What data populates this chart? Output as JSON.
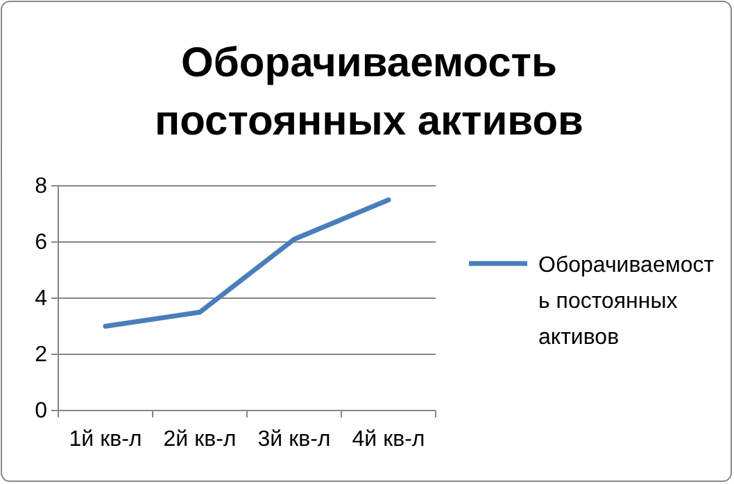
{
  "chart_data": {
    "type": "line",
    "title": "Оборачиваемость постоянных активов",
    "categories": [
      "1й кв-л",
      "2й кв-л",
      "3й кв-л",
      "4й кв-л"
    ],
    "series": [
      {
        "name": "Оборачиваемость постоянных активов",
        "color": "#4a7ebb",
        "values": [
          3,
          3.5,
          6.1,
          7.5
        ]
      }
    ],
    "ylim": [
      0,
      8
    ],
    "yticks": [
      0,
      2,
      4,
      6,
      8
    ],
    "grid": "y",
    "legend": "right",
    "marker": "none",
    "line_style": "solid"
  }
}
